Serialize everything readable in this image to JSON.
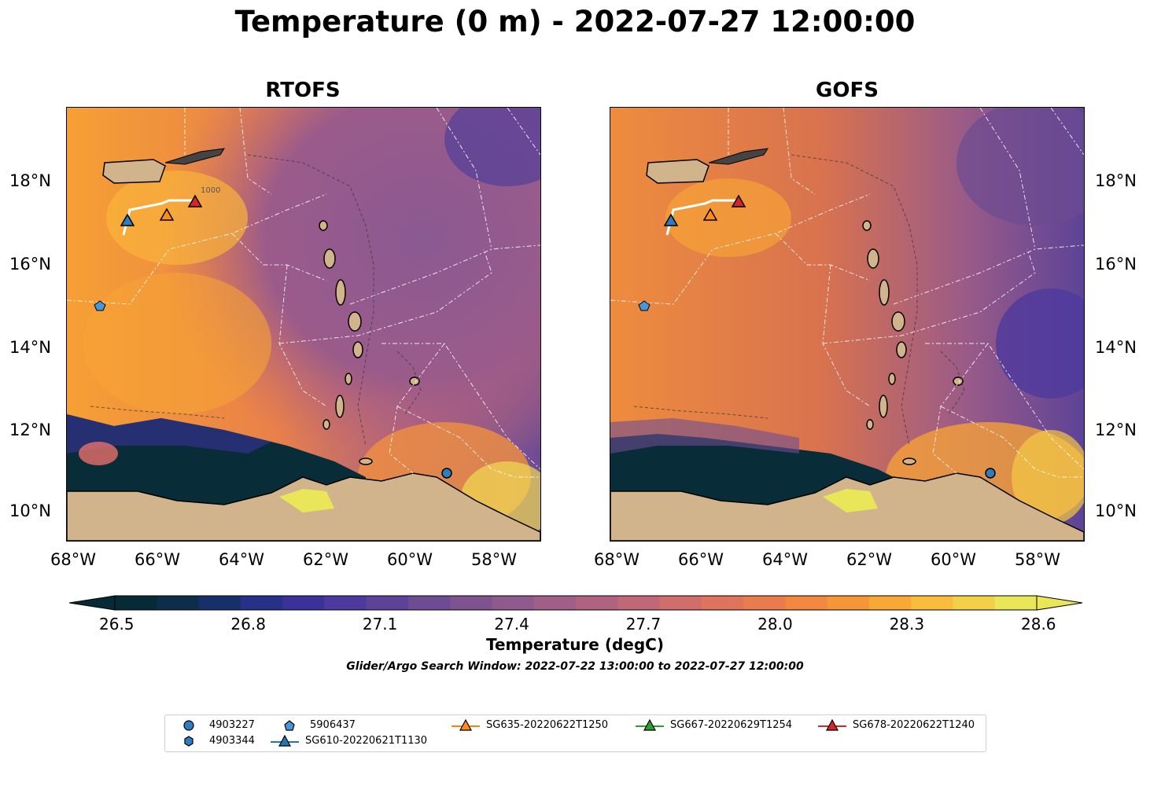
{
  "figure": {
    "title": "Temperature (0 m) - 2022-07-27 12:00:00",
    "panels": [
      {
        "title": "RTOFS"
      },
      {
        "title": "GOFS"
      }
    ],
    "lon_ticks": [
      "68°W",
      "66°W",
      "64°W",
      "62°W",
      "60°W",
      "58°W"
    ],
    "lat_ticks": [
      "18°N",
      "16°N",
      "14°N",
      "12°N",
      "10°N"
    ],
    "contour_label": "1000"
  },
  "colorbar": {
    "ticks": [
      "26.5",
      "26.8",
      "27.1",
      "27.4",
      "27.7",
      "28.0",
      "28.3",
      "28.6"
    ],
    "label": "Temperature (degC)",
    "subtitle": "Glider/Argo Search Window: 2022-07-22 13:00:00 to 2022-07-27 12:00:00",
    "colors": [
      "#062a36",
      "#0d2e4b",
      "#17306b",
      "#27318a",
      "#3a3299",
      "#4d3a9e",
      "#5d4397",
      "#6e4c93",
      "#7e5490",
      "#8f5a8c",
      "#a05f87",
      "#b06380",
      "#c06878",
      "#d06e6b",
      "#de745c",
      "#ea7b4d",
      "#f2873f",
      "#f59736",
      "#f8a835",
      "#f9bc3c",
      "#f3d04a",
      "#e9e65a"
    ]
  },
  "legend": {
    "items": [
      {
        "label": "4903227",
        "marker": "circle",
        "color": "#2f7cc0"
      },
      {
        "label": "4903344",
        "marker": "hexagon",
        "color": "#2f7cc0"
      },
      {
        "label": "5906437",
        "marker": "pentagon",
        "color": "#4a95d6"
      },
      {
        "label": "SG610-20220621T1130",
        "marker": "triangle-line",
        "color": "#1f77b4"
      },
      {
        "label": "SG635-20220622T1250",
        "marker": "triangle-line",
        "color": "#ff7f0e"
      },
      {
        "label": "SG667-20220629T1254",
        "marker": "triangle-line",
        "color": "#2ca02c"
      },
      {
        "label": "SG678-20220622T1240",
        "marker": "triangle-line",
        "color": "#d62728"
      }
    ]
  },
  "map_colors": {
    "land": "#d2b48c",
    "warm": "#f59a34",
    "mid": "#d9704f",
    "cool": "#7a4f92",
    "cold": "#082c38",
    "boundary": "#ffffff"
  }
}
